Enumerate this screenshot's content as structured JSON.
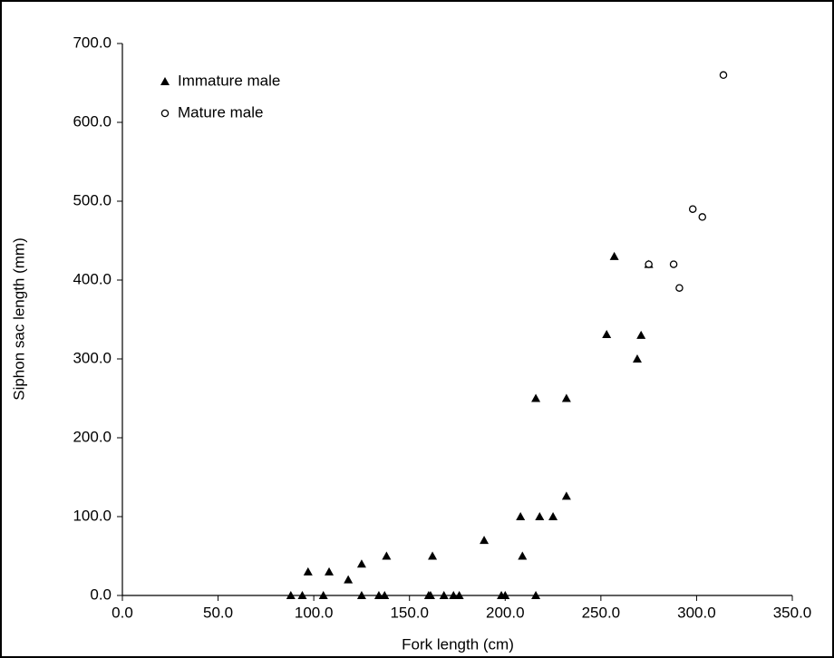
{
  "chart_data": {
    "type": "scatter",
    "xlabel": "Fork length (cm)",
    "ylabel": "Siphon sac length (mm)",
    "xlim": [
      0,
      350
    ],
    "ylim": [
      0,
      700
    ],
    "xticks": [
      {
        "value": 0,
        "label": "0.0"
      },
      {
        "value": 50,
        "label": "50.0"
      },
      {
        "value": 100,
        "label": "100.0"
      },
      {
        "value": 150,
        "label": "150.0"
      },
      {
        "value": 200,
        "label": "200.0"
      },
      {
        "value": 250,
        "label": "250.0"
      },
      {
        "value": 300,
        "label": "300.0"
      },
      {
        "value": 350,
        "label": "350.0"
      }
    ],
    "yticks": [
      {
        "value": 0,
        "label": "0.0"
      },
      {
        "value": 100,
        "label": "100.0"
      },
      {
        "value": 200,
        "label": "200.0"
      },
      {
        "value": 300,
        "label": "300.0"
      },
      {
        "value": 400,
        "label": "400.0"
      },
      {
        "value": 500,
        "label": "500.0"
      },
      {
        "value": 600,
        "label": "600.0"
      },
      {
        "value": 700,
        "label": "700.0"
      }
    ],
    "legend": "top-left",
    "series": [
      {
        "name": "Immature male",
        "color": "#000000",
        "marker": "triangle",
        "x": [
          88,
          94,
          97,
          105,
          108,
          118,
          125,
          125,
          134,
          137,
          138,
          160,
          161,
          162,
          168,
          173,
          176,
          189,
          198,
          200,
          208,
          209,
          216,
          216,
          218,
          225,
          232,
          232,
          253,
          257,
          269,
          271,
          275
        ],
        "values": [
          0,
          0,
          30,
          0,
          30,
          20,
          40,
          0,
          0,
          0,
          50,
          0,
          0,
          50,
          0,
          0,
          0,
          70,
          0,
          0,
          100,
          50,
          250,
          0,
          100,
          100,
          126,
          250,
          331,
          430,
          300,
          330,
          420
        ]
      },
      {
        "name": "Mature male",
        "color": "#000000",
        "marker": "circle-open",
        "x": [
          275,
          288,
          291,
          298,
          303,
          314
        ],
        "values": [
          420,
          420,
          390,
          490,
          480,
          660
        ]
      }
    ]
  }
}
